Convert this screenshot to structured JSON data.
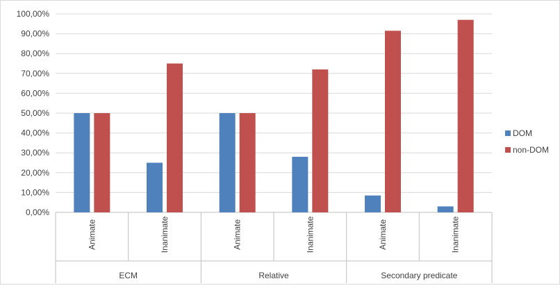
{
  "chart_data": {
    "type": "bar",
    "title": "",
    "groups": [
      {
        "label": "ECM",
        "categories": [
          "Animate",
          "Inanimate"
        ]
      },
      {
        "label": "Relative",
        "categories": [
          "Animate",
          "Inanimate"
        ]
      },
      {
        "label": "Secondary predicate",
        "categories": [
          "Animate",
          "Inanimate"
        ]
      }
    ],
    "series": [
      {
        "name": "DOM",
        "color": "#4f81bd",
        "values": [
          50.0,
          25.0,
          50.0,
          28.0,
          8.5,
          3.0
        ]
      },
      {
        "name": "non-DOM",
        "color": "#c0504d",
        "values": [
          50.0,
          75.0,
          50.0,
          72.0,
          91.5,
          97.0
        ]
      }
    ],
    "yticks": [
      "0,00%",
      "10,00%",
      "20,00%",
      "30,00%",
      "40,00%",
      "50,00%",
      "60,00%",
      "70,00%",
      "80,00%",
      "90,00%",
      "100,00%"
    ],
    "ylim": [
      0,
      100
    ],
    "grid": true,
    "legend_position": "right"
  }
}
